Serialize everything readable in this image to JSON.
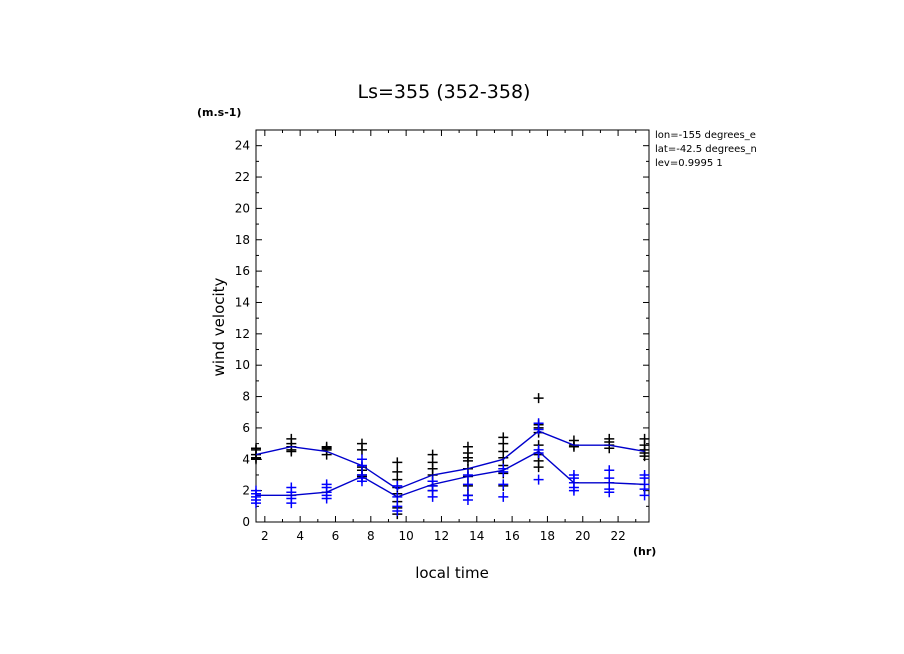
{
  "chart_data": {
    "type": "scatter",
    "title": "Ls=355 (352-358)",
    "xlabel": "local time",
    "ylabel": "wind velocity",
    "x_unit": "(hr)",
    "y_unit": "(m.s-1)",
    "xlim": [
      1.5,
      23.75
    ],
    "ylim": [
      0,
      25
    ],
    "x_ticks": [
      "2",
      "4",
      "6",
      "8",
      "10",
      "12",
      "14",
      "16",
      "18",
      "20",
      "22"
    ],
    "y_ticks": [
      "0",
      "2",
      "4",
      "6",
      "8",
      "10",
      "12",
      "14",
      "16",
      "18",
      "20",
      "22",
      "24"
    ],
    "grid": false,
    "annotations": [
      "lon=-155 degrees_e",
      "lat=-42.5 degrees_n",
      "lev=0.9995 1"
    ],
    "series": [
      {
        "color": "#000000",
        "x": [
          1.5,
          3.5,
          5.5,
          7.5,
          9.5,
          11.5,
          13.5,
          15.5,
          17.5,
          19.5,
          21.5,
          23.5
        ],
        "values": [
          4.3,
          4.8,
          4.5,
          3.6,
          2.1,
          3.0,
          3.4,
          4.0,
          5.8,
          4.9,
          4.9,
          4.5
        ],
        "points": [
          [
            1.5,
            4.6
          ],
          [
            1.5,
            4.3
          ],
          [
            1.5,
            4.1
          ],
          [
            1.5,
            4.0
          ],
          [
            1.5,
            4.7
          ],
          [
            3.5,
            5.3
          ],
          [
            3.5,
            5.0
          ],
          [
            3.5,
            4.8
          ],
          [
            3.5,
            4.6
          ],
          [
            3.5,
            4.5
          ],
          [
            5.5,
            4.8
          ],
          [
            5.5,
            4.7
          ],
          [
            5.5,
            4.6
          ],
          [
            5.5,
            4.3
          ],
          [
            7.5,
            5.0
          ],
          [
            7.5,
            4.6
          ],
          [
            7.5,
            3.5
          ],
          [
            7.5,
            3.3
          ],
          [
            7.5,
            3.0
          ],
          [
            7.5,
            2.9
          ],
          [
            9.5,
            3.8
          ],
          [
            9.5,
            3.2
          ],
          [
            9.5,
            2.7
          ],
          [
            9.5,
            2.2
          ],
          [
            9.5,
            1.8
          ],
          [
            9.5,
            1.3
          ],
          [
            9.5,
            0.9
          ],
          [
            9.5,
            0.5
          ],
          [
            11.5,
            4.3
          ],
          [
            11.5,
            3.8
          ],
          [
            11.5,
            3.4
          ],
          [
            11.5,
            3.0
          ],
          [
            11.5,
            2.6
          ],
          [
            11.5,
            2.3
          ],
          [
            11.5,
            2.0
          ],
          [
            13.5,
            4.8
          ],
          [
            13.5,
            4.4
          ],
          [
            13.5,
            4.1
          ],
          [
            13.5,
            3.9
          ],
          [
            13.5,
            3.4
          ],
          [
            13.5,
            2.9
          ],
          [
            13.5,
            2.3
          ],
          [
            13.5,
            1.7
          ],
          [
            15.5,
            5.4
          ],
          [
            15.5,
            5.0
          ],
          [
            15.5,
            4.5
          ],
          [
            15.5,
            4.1
          ],
          [
            15.5,
            3.6
          ],
          [
            15.5,
            3.1
          ],
          [
            15.5,
            2.3
          ],
          [
            17.5,
            7.9
          ],
          [
            17.5,
            6.2
          ],
          [
            17.5,
            6.0
          ],
          [
            17.5,
            5.7
          ],
          [
            17.5,
            4.9
          ],
          [
            17.5,
            4.3
          ],
          [
            17.5,
            3.9
          ],
          [
            17.5,
            3.5
          ],
          [
            19.5,
            5.2
          ],
          [
            19.5,
            4.9
          ],
          [
            19.5,
            4.8
          ],
          [
            21.5,
            5.3
          ],
          [
            21.5,
            5.1
          ],
          [
            21.5,
            4.9
          ],
          [
            21.5,
            4.7
          ],
          [
            23.5,
            5.3
          ],
          [
            23.5,
            4.9
          ],
          [
            23.5,
            4.6
          ],
          [
            23.5,
            4.4
          ],
          [
            23.5,
            4.2
          ]
        ]
      },
      {
        "color": "#0000ff",
        "x": [
          1.5,
          3.5,
          5.5,
          7.5,
          9.5,
          11.5,
          13.5,
          15.5,
          17.5,
          19.5,
          21.5,
          23.5
        ],
        "values": [
          1.7,
          1.7,
          1.9,
          2.9,
          1.6,
          2.4,
          2.9,
          3.3,
          4.5,
          2.5,
          2.5,
          2.4
        ],
        "points": [
          [
            1.5,
            2.0
          ],
          [
            1.5,
            1.8
          ],
          [
            1.5,
            1.6
          ],
          [
            1.5,
            1.4
          ],
          [
            1.5,
            1.2
          ],
          [
            3.5,
            2.2
          ],
          [
            3.5,
            1.9
          ],
          [
            3.5,
            1.7
          ],
          [
            3.5,
            1.5
          ],
          [
            3.5,
            1.2
          ],
          [
            5.5,
            2.4
          ],
          [
            5.5,
            2.2
          ],
          [
            5.5,
            1.9
          ],
          [
            5.5,
            1.7
          ],
          [
            5.5,
            1.5
          ],
          [
            7.5,
            4.0
          ],
          [
            7.5,
            3.6
          ],
          [
            7.5,
            3.0
          ],
          [
            7.5,
            2.8
          ],
          [
            7.5,
            2.6
          ],
          [
            9.5,
            2.3
          ],
          [
            9.5,
            1.6
          ],
          [
            9.5,
            1.0
          ],
          [
            9.5,
            0.7
          ],
          [
            11.5,
            2.6
          ],
          [
            11.5,
            2.3
          ],
          [
            11.5,
            2.0
          ],
          [
            11.5,
            1.6
          ],
          [
            13.5,
            3.0
          ],
          [
            13.5,
            2.4
          ],
          [
            13.5,
            1.7
          ],
          [
            13.5,
            1.4
          ],
          [
            15.5,
            3.4
          ],
          [
            15.5,
            3.2
          ],
          [
            15.5,
            2.4
          ],
          [
            15.5,
            1.6
          ],
          [
            17.5,
            6.3
          ],
          [
            17.5,
            5.9
          ],
          [
            17.5,
            4.6
          ],
          [
            17.5,
            4.4
          ],
          [
            17.5,
            2.7
          ],
          [
            19.5,
            3.0
          ],
          [
            19.5,
            2.8
          ],
          [
            19.5,
            2.5
          ],
          [
            19.5,
            2.2
          ],
          [
            19.5,
            2.0
          ],
          [
            21.5,
            3.3
          ],
          [
            21.5,
            2.8
          ],
          [
            21.5,
            2.5
          ],
          [
            21.5,
            2.1
          ],
          [
            21.5,
            1.9
          ],
          [
            23.5,
            3.0
          ],
          [
            23.5,
            2.8
          ],
          [
            23.5,
            2.4
          ],
          [
            23.5,
            2.1
          ],
          [
            23.5,
            1.7
          ]
        ]
      }
    ]
  }
}
